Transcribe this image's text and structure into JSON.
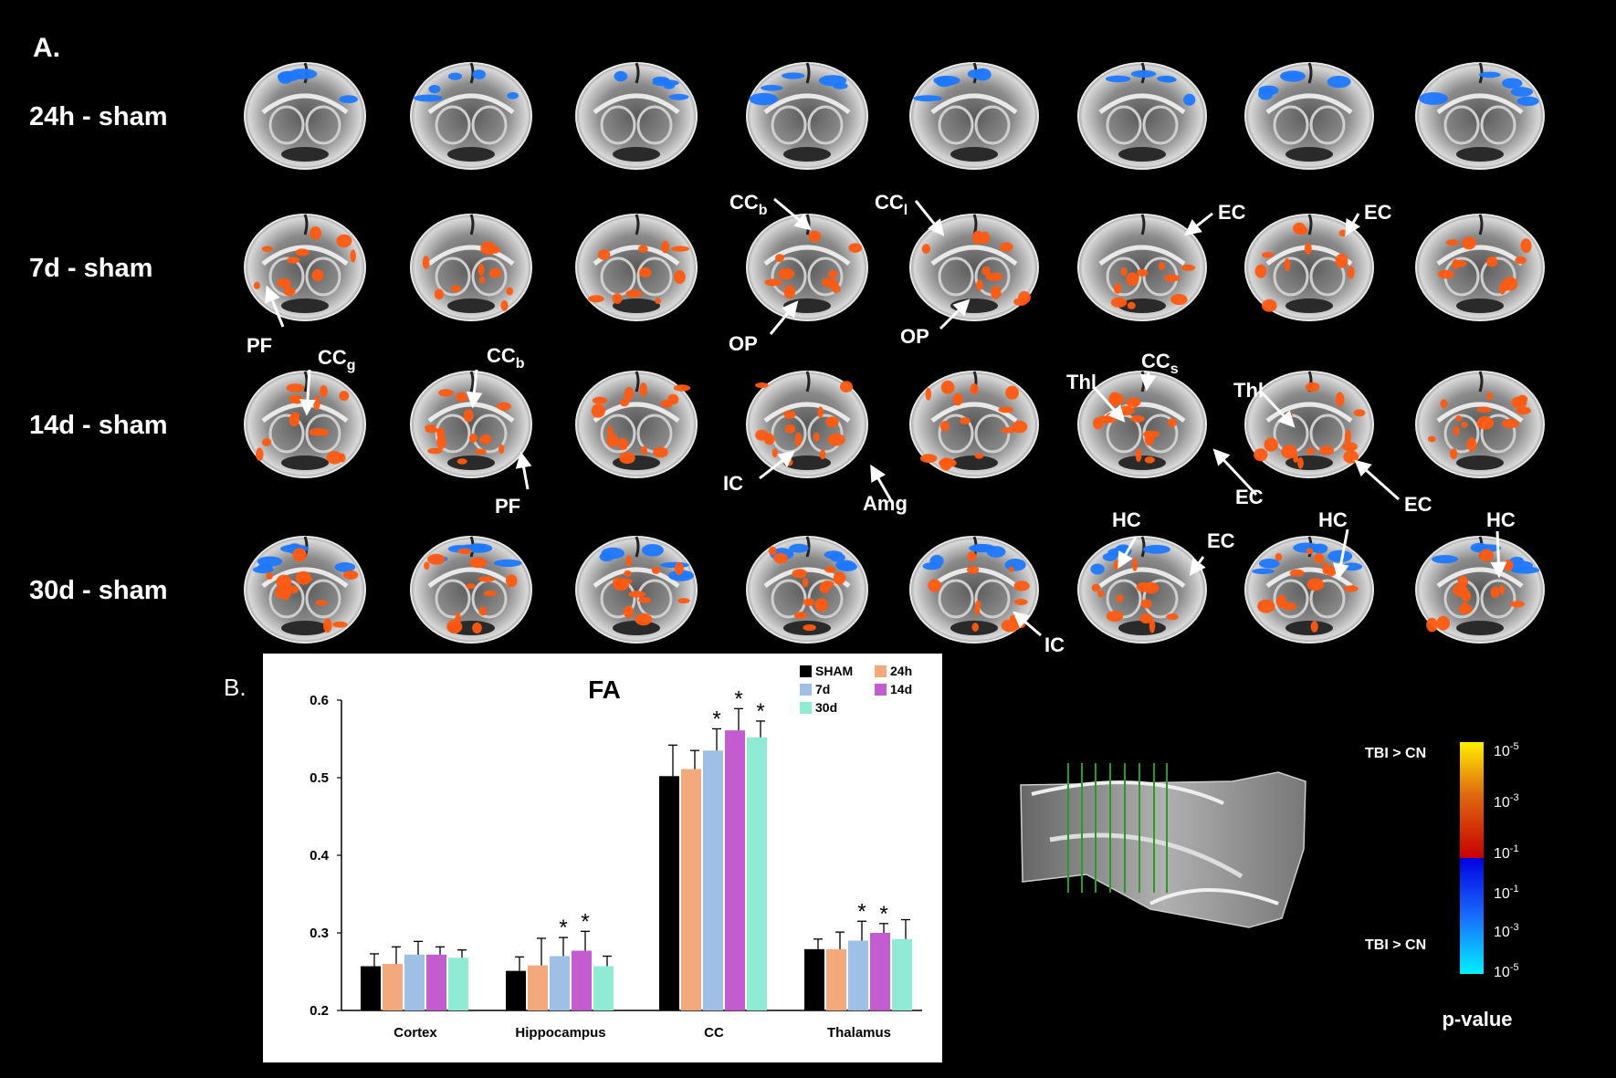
{
  "panel_a": {
    "label": "A.",
    "rows": [
      {
        "label": "24h - sham"
      },
      {
        "label": "7d - sham"
      },
      {
        "label": "14d - sham"
      },
      {
        "label": "30d - sham"
      }
    ],
    "annotations": [
      {
        "text": "CC",
        "sub": "b"
      },
      {
        "text": "CC",
        "sub": "l"
      },
      {
        "text": "EC"
      },
      {
        "text": "EC"
      },
      {
        "text": "PF"
      },
      {
        "text": "OP"
      },
      {
        "text": "OP"
      },
      {
        "text": "CC",
        "sub": "g"
      },
      {
        "text": "CC",
        "sub": "b"
      },
      {
        "text": "CC",
        "sub": "s"
      },
      {
        "text": "Thl"
      },
      {
        "text": "Thl"
      },
      {
        "text": "PF"
      },
      {
        "text": "IC"
      },
      {
        "text": "Amg"
      },
      {
        "text": "EC"
      },
      {
        "text": "EC"
      },
      {
        "text": "HC"
      },
      {
        "text": "EC"
      },
      {
        "text": "HC"
      },
      {
        "text": "HC"
      },
      {
        "text": "IC"
      }
    ],
    "colors": {
      "orange": "#ff5a10",
      "blue": "#1e78ff"
    }
  },
  "panel_b_label": "B.",
  "chart_data": {
    "type": "bar",
    "title": "FA",
    "categories": [
      "Cortex",
      "Hippocampus",
      "CC",
      "Thalamus"
    ],
    "ylim": [
      0.2,
      0.6
    ],
    "yticks": [
      "0.2",
      "0.3",
      "0.4",
      "0.5",
      "0.6"
    ],
    "grid": false,
    "legend_position": "top-right",
    "series": [
      {
        "name": "SHAM",
        "color": "#000000",
        "values": [
          0.257,
          0.251,
          0.502,
          0.279
        ],
        "errors": [
          0.016,
          0.018,
          0.04,
          0.013
        ],
        "sig": [
          false,
          false,
          false,
          false
        ]
      },
      {
        "name": "24h",
        "color": "#f4a97c",
        "values": [
          0.26,
          0.258,
          0.511,
          0.279
        ],
        "errors": [
          0.022,
          0.035,
          0.024,
          0.022
        ],
        "sig": [
          false,
          false,
          false,
          false
        ]
      },
      {
        "name": "7d",
        "color": "#9fc0e4",
        "values": [
          0.272,
          0.27,
          0.535,
          0.29
        ],
        "errors": [
          0.017,
          0.024,
          0.028,
          0.025
        ],
        "sig": [
          false,
          true,
          true,
          true
        ]
      },
      {
        "name": "14d",
        "color": "#c35ccf",
        "values": [
          0.272,
          0.277,
          0.561,
          0.3
        ],
        "errors": [
          0.01,
          0.025,
          0.028,
          0.012
        ],
        "sig": [
          false,
          true,
          true,
          true
        ]
      },
      {
        "name": "30d",
        "color": "#90ebd4",
        "values": [
          0.268,
          0.257,
          0.552,
          0.292
        ],
        "errors": [
          0.01,
          0.013,
          0.021,
          0.025
        ],
        "sig": [
          false,
          false,
          true,
          false
        ]
      }
    ]
  },
  "colorbar": {
    "top_label": "TBI > CN",
    "bottom_label": "TBI > CN",
    "ticks": [
      {
        "base": "10",
        "exp": "-5"
      },
      {
        "base": "10",
        "exp": "-3"
      },
      {
        "base": "10",
        "exp": "-1"
      },
      {
        "base": "10",
        "exp": "-1"
      },
      {
        "base": "10",
        "exp": "-3"
      },
      {
        "base": "10",
        "exp": "-5"
      }
    ],
    "title": "p-value"
  }
}
